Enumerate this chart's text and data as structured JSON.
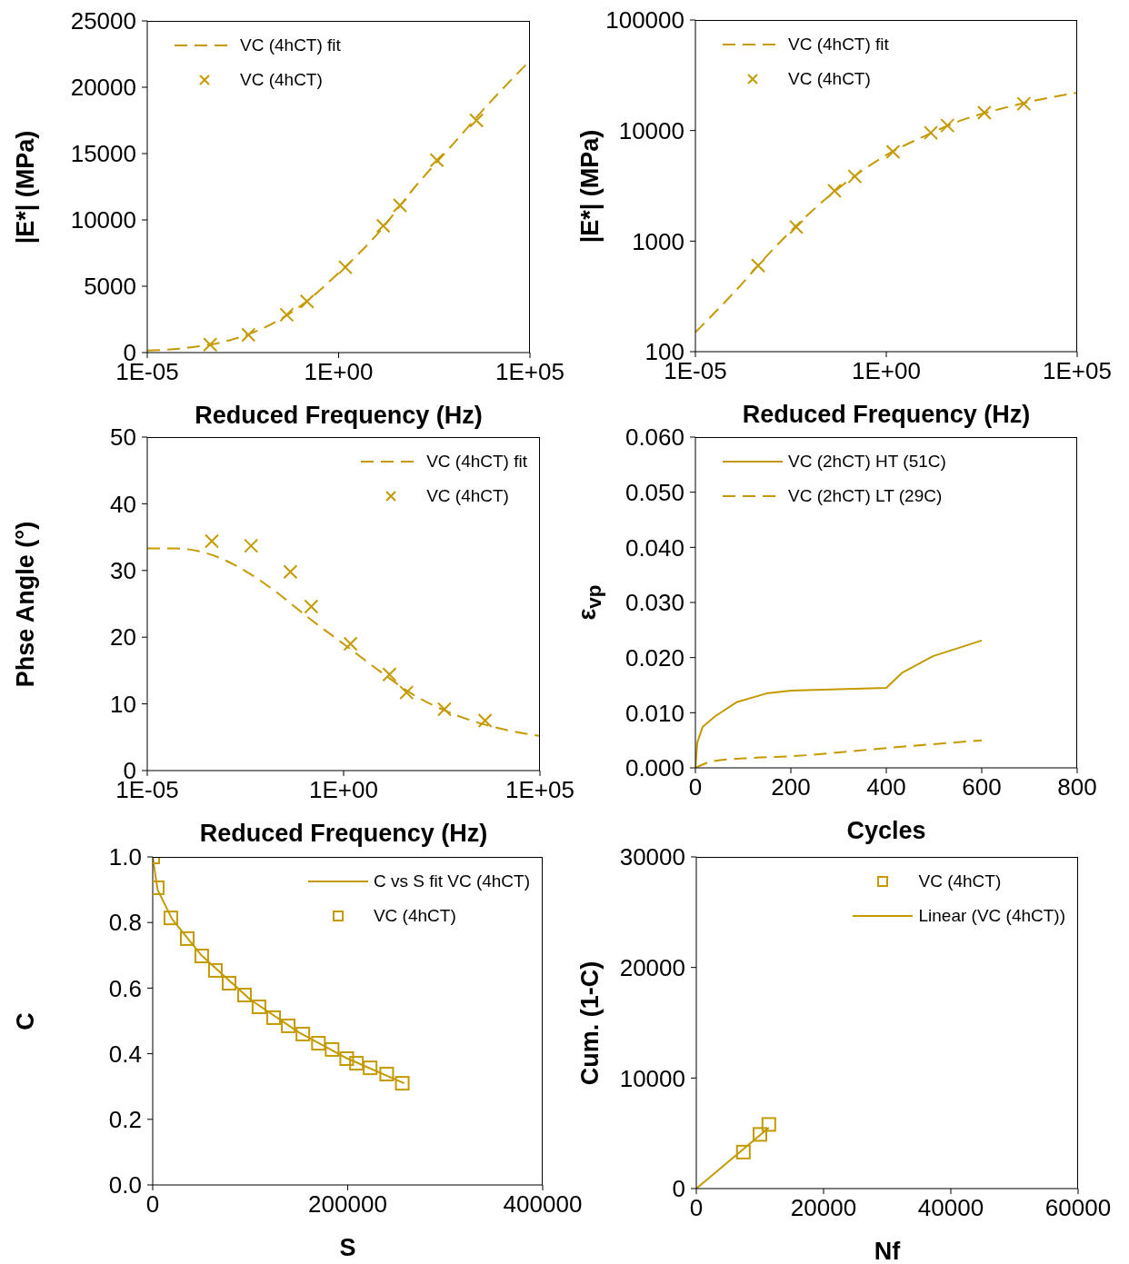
{
  "chart_data": [
    {
      "type": "scatter",
      "xlabel": "Reduced Frequency (Hz)",
      "ylabel": "|E*| (MPa)",
      "log": "x",
      "xlim": [
        1e-05,
        100000
      ],
      "xticks": [
        {
          "value": 1e-05,
          "label": "1E-05"
        },
        {
          "value": 1,
          "label": "1E+00"
        },
        {
          "value": 100000,
          "label": "1E+05"
        }
      ],
      "ylim": [
        0,
        25000
      ],
      "yticks": [
        0,
        5000,
        10000,
        15000,
        20000,
        25000
      ],
      "legend": "top left",
      "series": [
        {
          "name": "VC (4hCT) fit",
          "type": "line",
          "line_style": "dashed",
          "marker": "none",
          "color": "#c49a00",
          "x": [
            1e-05,
            0.0001,
            0.001,
            0.01,
            0.1,
            1,
            10,
            100,
            1000,
            10000,
            100000
          ],
          "values": [
            150,
            340,
            820,
            1800,
            3500,
            6000,
            8900,
            12500,
            15750,
            19000,
            22000
          ]
        },
        {
          "name": "VC (4hCT)",
          "marker": "cross",
          "color": "#c49a00",
          "x": [
            0.00044,
            0.0044,
            0.044,
            0.15,
            1.5,
            14.7,
            40,
            370,
            4000
          ],
          "values": [
            600,
            1340,
            2850,
            3850,
            6430,
            9550,
            11100,
            14500,
            17500
          ]
        }
      ]
    },
    {
      "type": "scatter",
      "xlabel": "Reduced Frequency (Hz)",
      "ylabel": "|E*| (MPa)",
      "log": "xy",
      "xlim": [
        1e-05,
        100000
      ],
      "xticks": [
        {
          "value": 1e-05,
          "label": "1E-05"
        },
        {
          "value": 1,
          "label": "1E+00"
        },
        {
          "value": 100000,
          "label": "1E+05"
        }
      ],
      "ylim": [
        100,
        100000
      ],
      "yticks": [
        100,
        1000,
        10000,
        100000
      ],
      "legend": "top left",
      "series": [
        {
          "name": "VC (4hCT) fit",
          "type": "line",
          "line_style": "dashed",
          "marker": "none",
          "color": "#c49a00",
          "x": [
            1e-05,
            0.0001,
            0.001,
            0.01,
            0.1,
            1,
            10,
            100,
            1000,
            10000,
            100000
          ],
          "values": [
            150,
            340,
            820,
            1800,
            3500,
            6000,
            8900,
            12500,
            15750,
            19000,
            22000
          ]
        },
        {
          "name": "VC (4hCT)",
          "marker": "cross",
          "color": "#c49a00",
          "x": [
            0.00044,
            0.0044,
            0.044,
            0.15,
            1.5,
            14.7,
            40,
            370,
            4000
          ],
          "values": [
            600,
            1340,
            2850,
            3850,
            6430,
            9550,
            11100,
            14500,
            17500
          ]
        }
      ]
    },
    {
      "type": "scatter",
      "xlabel": "Reduced Frequency (Hz)",
      "ylabel": "Phse Angle (°)",
      "log": "x",
      "xlim": [
        1e-05,
        100000
      ],
      "xticks": [
        {
          "value": 1e-05,
          "label": "1E-05"
        },
        {
          "value": 1,
          "label": "1E+00"
        },
        {
          "value": 100000,
          "label": "1E+05"
        }
      ],
      "ylim": [
        0,
        50
      ],
      "yticks": [
        0,
        10,
        20,
        30,
        40,
        50
      ],
      "legend": "top right",
      "series": [
        {
          "name": "VC (4hCT) fit",
          "type": "line",
          "line_style": "dashed",
          "marker": "none",
          "color": "#c49a00",
          "x": [
            1e-05,
            5.2e-05,
            0.00032,
            0.0032,
            0.018,
            0.11,
            1.1,
            9.3,
            55,
            460,
            3900,
            95000
          ],
          "values": [
            33.3,
            33.3,
            32.6,
            29.9,
            26.9,
            23.2,
            18.8,
            14.7,
            11.5,
            8.8,
            6.9,
            5.2
          ]
        },
        {
          "name": "VC (4hCT)",
          "marker": "cross",
          "color": "#c49a00",
          "x": [
            0.00044,
            0.0044,
            0.044,
            0.15,
            1.5,
            14.7,
            40,
            370,
            4000
          ],
          "values": [
            34.4,
            33.7,
            29.8,
            24.6,
            19.0,
            14.4,
            11.7,
            9.2,
            7.5
          ]
        }
      ]
    },
    {
      "type": "line",
      "xlabel": "Cycles",
      "ylabel": "ε$_{vp}$",
      "xlim": [
        0,
        800
      ],
      "xticks": [
        0,
        200,
        400,
        600,
        800
      ],
      "ylim": [
        0,
        0.06
      ],
      "yticks": [
        {
          "value": 0,
          "label": "0.000"
        },
        {
          "value": 0.01,
          "label": "0.010"
        },
        {
          "value": 0.02,
          "label": "0.020"
        },
        {
          "value": 0.03,
          "label": "0.030"
        },
        {
          "value": 0.04,
          "label": "0.040"
        },
        {
          "value": 0.05,
          "label": "0.050"
        },
        {
          "value": 0.06,
          "label": "0.060"
        }
      ],
      "legend": "top left",
      "marker": "none",
      "series": [
        {
          "name": "VC (2hCT) HT (51C)",
          "line_style": "solid",
          "color": "#c49a00",
          "x": [
            0,
            4,
            15,
            42,
            86,
            149,
            200,
            400,
            434,
            499,
            600
          ],
          "values": [
            0,
            0.0046,
            0.0074,
            0.0094,
            0.0119,
            0.0135,
            0.014,
            0.0145,
            0.0173,
            0.0203,
            0.0231
          ]
        },
        {
          "name": "VC (2hCT) LT (29C)",
          "line_style": "dashed",
          "color": "#c49a00",
          "x": [
            0,
            38,
            118,
            200,
            400,
            600
          ],
          "values": [
            0,
            0.0012,
            0.0018,
            0.0021,
            0.0036,
            0.005
          ]
        }
      ]
    },
    {
      "type": "scatter",
      "xlabel": "S",
      "ylabel": "C",
      "xlim": [
        0,
        400000
      ],
      "xticks": [
        0,
        200000,
        400000
      ],
      "ylim": [
        0,
        1
      ],
      "yticks": [
        {
          "value": 0,
          "label": "0.0"
        },
        {
          "value": 0.2,
          "label": "0.2"
        },
        {
          "value": 0.4,
          "label": "0.4"
        },
        {
          "value": 0.6,
          "label": "0.6"
        },
        {
          "value": 0.8,
          "label": "0.8"
        },
        {
          "value": 1,
          "label": "1.0"
        }
      ],
      "legend": "top right",
      "series": [
        {
          "name": "C vs S fit VC (4hCT)",
          "type": "line",
          "line_style": "solid",
          "marker": "none",
          "color": "#c49a00",
          "x": [
            0,
            5000,
            20000,
            50000,
            100000,
            150000,
            200000,
            258000
          ],
          "values": [
            1,
            0.9,
            0.81,
            0.7,
            0.565,
            0.465,
            0.385,
            0.31
          ]
        },
        {
          "name": "VC (4hCT)",
          "marker": "square",
          "color": "#c49a00",
          "x": [
            0,
            4700,
            18600,
            35400,
            50300,
            64300,
            78300,
            94200,
            109000,
            124000,
            139000,
            154000,
            170000,
            184000,
            199000,
            209000,
            223000,
            240000,
            256000
          ],
          "values": [
            1,
            0.906,
            0.814,
            0.751,
            0.698,
            0.654,
            0.615,
            0.579,
            0.543,
            0.51,
            0.485,
            0.46,
            0.432,
            0.413,
            0.385,
            0.371,
            0.357,
            0.338,
            0.31
          ]
        }
      ]
    },
    {
      "type": "scatter",
      "xlabel": "Nf",
      "ylabel": "Cum. (1-C)",
      "xlim": [
        0,
        60000
      ],
      "xticks": [
        0,
        20000,
        40000,
        60000
      ],
      "ylim": [
        0,
        30000
      ],
      "yticks": [
        0,
        10000,
        20000,
        30000
      ],
      "legend": "top right",
      "series": [
        {
          "name": "VC (4hCT)",
          "marker": "square",
          "color": "#c49a00",
          "x": [
            7400,
            10000,
            11400
          ],
          "values": [
            3300,
            4900,
            5800
          ]
        },
        {
          "name": "Linear (VC (4hCT))",
          "type": "line",
          "line_style": "solid",
          "marker": "none",
          "color": "#c49a00",
          "x": [
            0,
            11400
          ],
          "values": [
            0,
            5500
          ]
        }
      ]
    }
  ]
}
